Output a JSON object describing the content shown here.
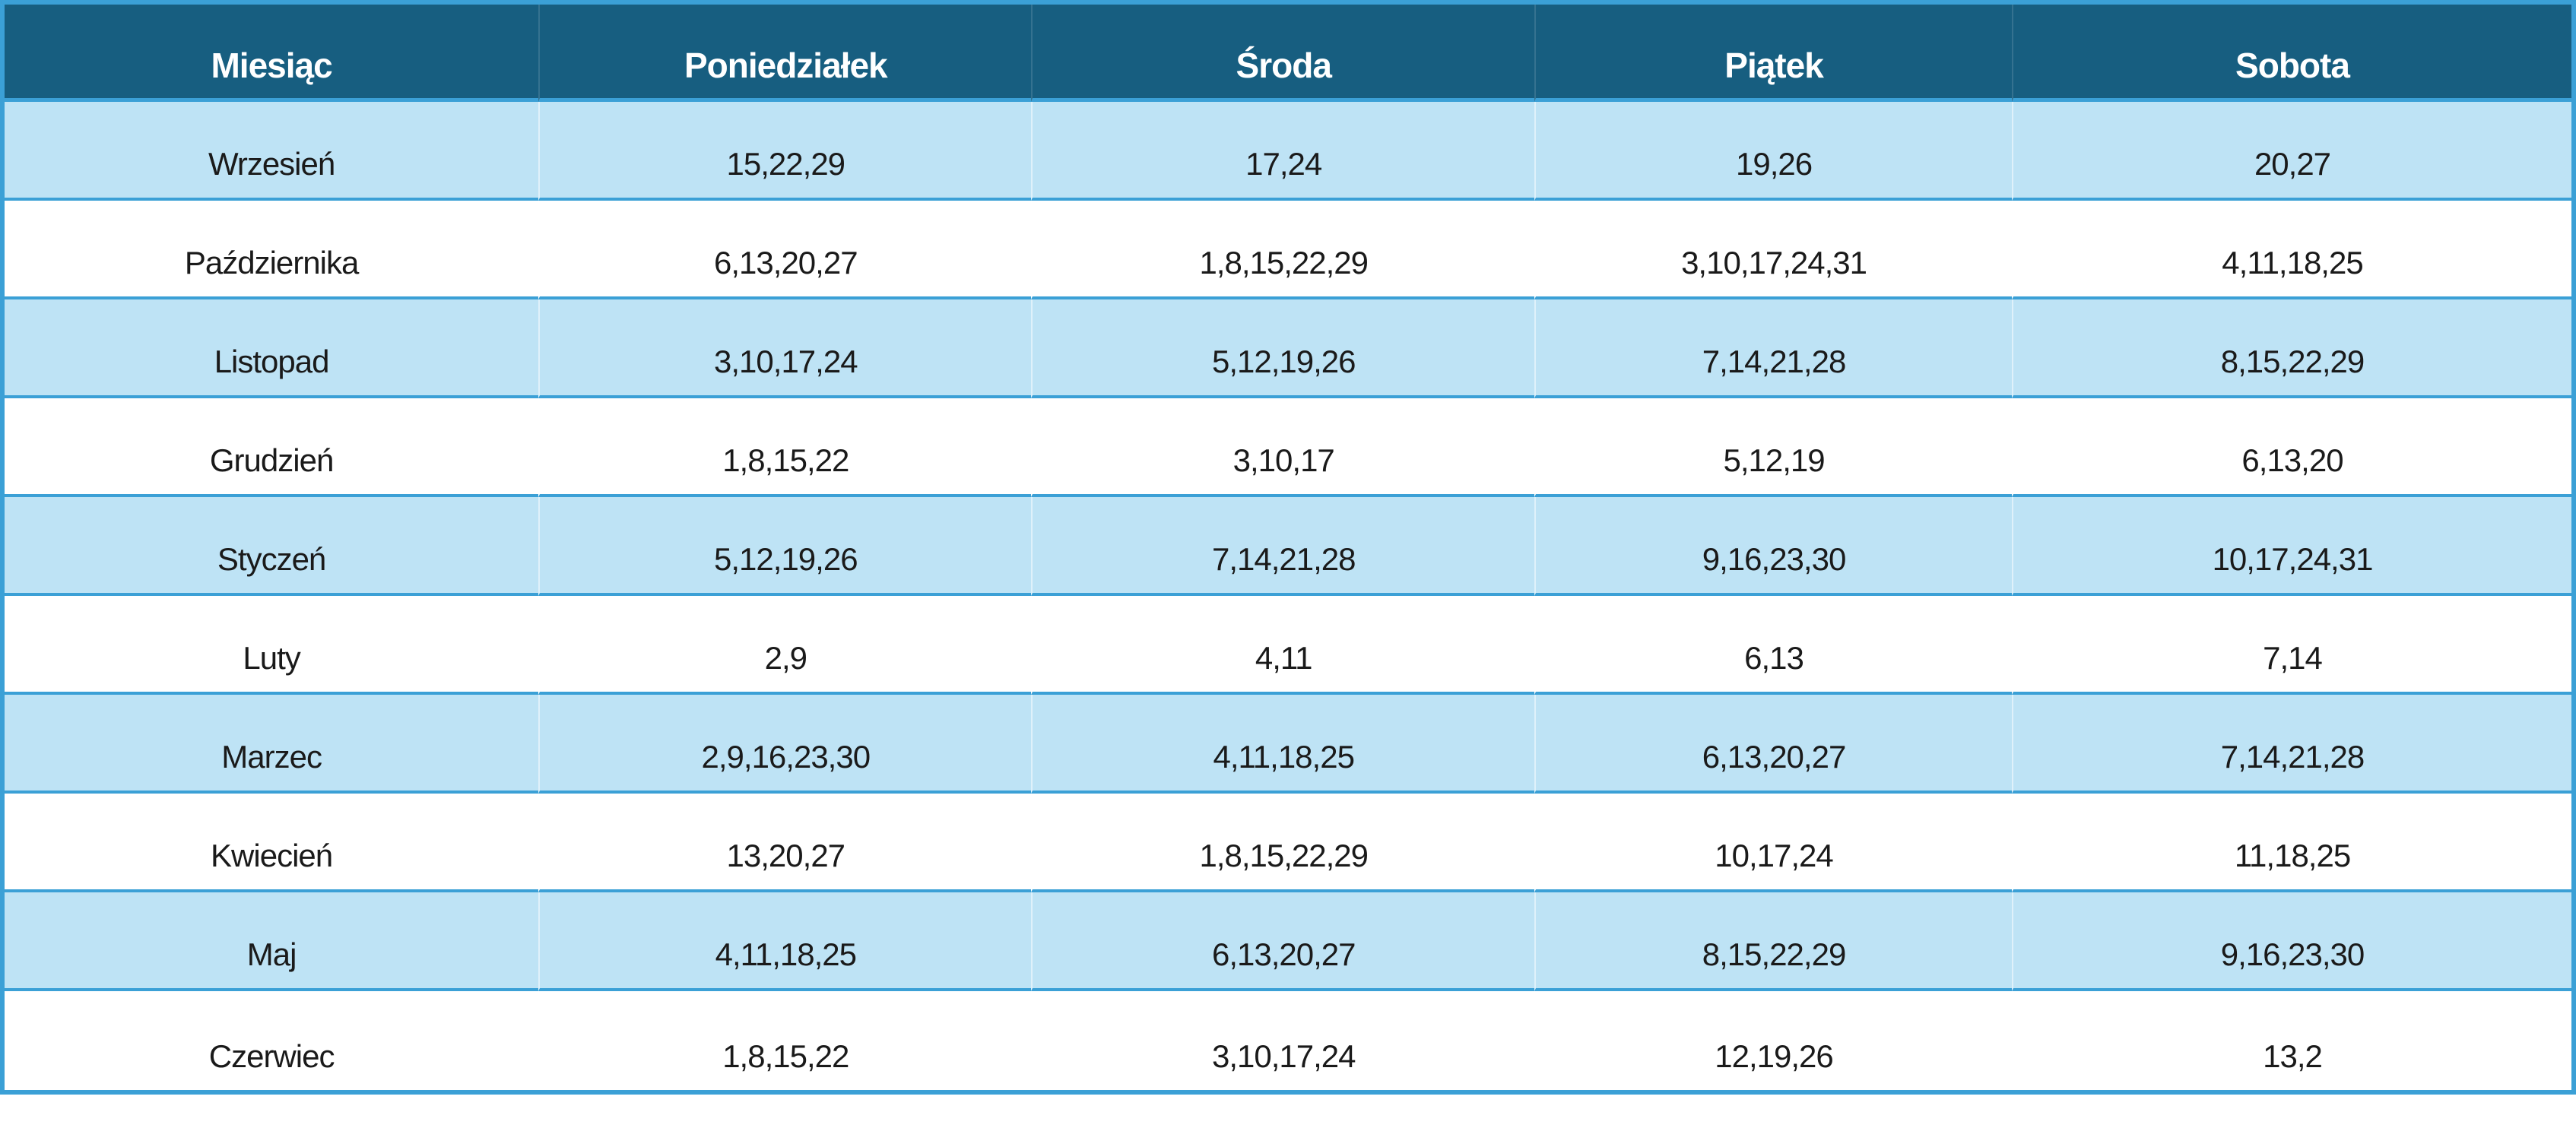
{
  "table": {
    "columns": [
      "Miesiąc",
      "Poniedziałek",
      "Środa",
      "Piątek",
      "Sobota"
    ],
    "rows": [
      {
        "month": "Wrzesień",
        "days": [
          "15,22,29",
          "17,24",
          "19,26",
          "20,27"
        ]
      },
      {
        "month": "Października",
        "days": [
          "6,13,20,27",
          "1,8,15,22,29",
          "3,10,17,24,31",
          "4,11,18,25"
        ]
      },
      {
        "month": "Listopad",
        "days": [
          "3,10,17,24",
          "5,12,19,26",
          "7,14,21,28",
          "8,15,22,29"
        ]
      },
      {
        "month": "Grudzień",
        "days": [
          "1,8,15,22",
          "3,10,17",
          "5,12,19",
          "6,13,20"
        ]
      },
      {
        "month": "Styczeń",
        "days": [
          "5,12,19,26",
          "7,14,21,28",
          "9,16,23,30",
          "10,17,24,31"
        ]
      },
      {
        "month": "Luty",
        "days": [
          "2,9",
          "4,11",
          "6,13",
          "7,14"
        ]
      },
      {
        "month": "Marzec",
        "days": [
          "2,9,16,23,30",
          "4,11,18,25",
          "6,13,20,27",
          "7,14,21,28"
        ]
      },
      {
        "month": "Kwiecień",
        "days": [
          "13,20,27",
          "1,8,15,22,29",
          "10,17,24",
          "11,18,25"
        ]
      },
      {
        "month": "Maj",
        "days": [
          "4,11,18,25",
          "6,13,20,27",
          "8,15,22,29",
          "9,16,23,30"
        ]
      },
      {
        "month": "Czerwiec",
        "days": [
          "1,8,15,22",
          "3,10,17,24",
          "12,19,26",
          "13,2"
        ]
      }
    ],
    "colors": {
      "header_bg": "#175E80",
      "header_text": "#FFFFFF",
      "row_blue": "#BEE3F5",
      "row_white": "#FFFFFF",
      "border": "#3BA0D6",
      "body_text": "#1A1A1A"
    }
  }
}
